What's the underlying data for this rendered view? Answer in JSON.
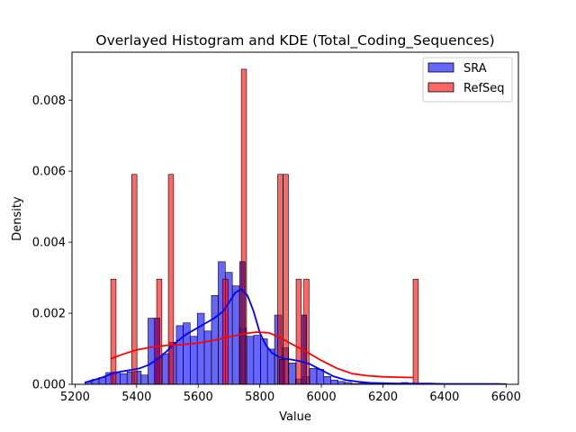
{
  "chart_data": {
    "type": "histogram",
    "title": "Overlayed Histogram and KDE (Total_Coding_Sequences)",
    "xlabel": "Value",
    "ylabel": "Density",
    "xlim": [
      5190,
      6640
    ],
    "ylim": [
      0,
      0.00935
    ],
    "xticks": [
      5200,
      5400,
      5600,
      5800,
      6000,
      6200,
      6400,
      6600
    ],
    "yticks": [
      0.0,
      0.002,
      0.004,
      0.006,
      0.008
    ],
    "ytick_labels": [
      "0.000",
      "0.002",
      "0.004",
      "0.006",
      "0.008"
    ],
    "grid": false,
    "legend_position": "top-right",
    "series": [
      {
        "name": "SRA",
        "kind": "histogram+kde",
        "color": "#0000ff",
        "bin_width": 22.8,
        "bin_starts": [
          5232,
          5255,
          5278,
          5300,
          5323,
          5346,
          5369,
          5392,
          5414,
          5437,
          5460,
          5483,
          5506,
          5529,
          5551,
          5574,
          5597,
          5620,
          5643,
          5665,
          5688,
          5711,
          5734,
          5757,
          5780,
          5802,
          5825,
          5848,
          5871,
          5894,
          5916,
          5939,
          5962,
          5985,
          6008,
          6031,
          6053,
          6076,
          6099,
          6122,
          6145,
          6167,
          6190,
          6213,
          6236,
          6259,
          6282,
          6304,
          6327,
          6350,
          6373,
          6396,
          6418,
          6441,
          6464,
          6487,
          6510,
          6533,
          6555,
          6578
        ],
        "densities": [
          7e-05,
          0.00014,
          0.00019,
          0.00033,
          0.00035,
          0.0003,
          0.00035,
          0.00037,
          0.00026,
          0.00186,
          0.00074,
          0.00086,
          0.00118,
          0.00165,
          0.00173,
          0.00135,
          0.002,
          0.0015,
          0.0025,
          0.00345,
          0.00315,
          0.00277,
          0.00158,
          0.00135,
          0.00138,
          0.00128,
          0.00099,
          0.00195,
          0.00103,
          0.0006,
          0.00015,
          0.00022,
          0.00045,
          0.00042,
          0.00022,
          0.00012,
          8e-05,
          5e-05,
          2e-05,
          3e-05,
          3e-05,
          2e-05,
          2e-05,
          2e-05,
          2e-05,
          5e-05,
          2e-05,
          2e-05,
          2e-05,
          2e-05,
          2e-05,
          2e-05,
          2e-05,
          2e-05,
          2e-05,
          2e-05,
          2e-05,
          2e-05,
          2e-05,
          2e-05
        ],
        "kde": {
          "x": [
            5232,
            5260,
            5290,
            5320,
            5350,
            5380,
            5410,
            5440,
            5470,
            5500,
            5530,
            5560,
            5590,
            5620,
            5650,
            5680,
            5700,
            5720,
            5740,
            5760,
            5780,
            5800,
            5820,
            5840,
            5860,
            5880,
            5900,
            5930,
            5960,
            6000,
            6040,
            6080,
            6120,
            6160,
            6200,
            6250,
            6300,
            6350,
            6400,
            6450,
            6500,
            6550,
            6580
          ],
          "y": [
            5e-05,
            0.00012,
            0.0002,
            0.0003,
            0.00036,
            0.0004,
            0.00045,
            0.00055,
            0.00072,
            0.00095,
            0.0012,
            0.0014,
            0.00155,
            0.0017,
            0.00185,
            0.00205,
            0.0023,
            0.00258,
            0.00268,
            0.0025,
            0.00205,
            0.00145,
            0.0011,
            0.00088,
            0.00078,
            0.00072,
            0.0007,
            0.00065,
            0.00058,
            0.0004,
            0.00022,
            0.00012,
            7e-05,
            4e-05,
            3e-05,
            2e-05,
            2e-05,
            2e-05,
            1e-05,
            1e-05,
            1e-05,
            1e-05,
            1e-05
          ]
        }
      },
      {
        "name": "RefSeq",
        "kind": "histogram+kde",
        "color": "#ff0000",
        "bin_width": 17,
        "bin_starts": [
          5316,
          5384,
          5465,
          5503,
          5680,
          5740,
          5858,
          5876,
          5918,
          5943,
          6298
        ],
        "densities": [
          0.00296,
          0.00591,
          0.00296,
          0.00591,
          0.00296,
          0.00887,
          0.00591,
          0.00591,
          0.00296,
          0.00296,
          0.00296
        ],
        "extra_bars": [
          {
            "start": 5458,
            "height": 0.00186,
            "overlap": true
          },
          {
            "start": 5735,
            "height": 0.00345,
            "overlap": true
          },
          {
            "start": 5863,
            "height": 0.0007,
            "overlap": true
          },
          {
            "start": 5935,
            "height": 0.00195,
            "overlap": true
          }
        ],
        "kde": {
          "x": [
            5316,
            5350,
            5400,
            5450,
            5500,
            5550,
            5600,
            5650,
            5700,
            5750,
            5790,
            5830,
            5870,
            5900,
            5950,
            6000,
            6050,
            6100,
            6150,
            6200,
            6250,
            6300
          ],
          "y": [
            0.00072,
            0.00083,
            0.00097,
            0.00105,
            0.0011,
            0.00112,
            0.00116,
            0.00124,
            0.00133,
            0.00143,
            0.00147,
            0.00145,
            0.0013,
            0.00115,
            0.00092,
            0.00067,
            0.00045,
            0.0003,
            0.00024,
            0.00021,
            0.0002,
            0.00019
          ]
        }
      }
    ]
  }
}
